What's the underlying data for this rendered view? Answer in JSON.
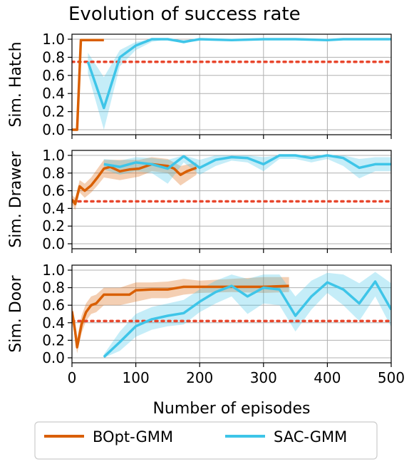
{
  "chart_data": {
    "type": "line",
    "title": "Evolution of success rate",
    "xlabel": "Number of episodes",
    "xlim": [
      0,
      500
    ],
    "x_ticks": [
      0,
      100,
      200,
      300,
      400,
      500
    ],
    "y_ticks": [
      "0.0",
      "0.2",
      "0.4",
      "0.6",
      "0.8",
      "1.0"
    ],
    "grid": true,
    "legend": {
      "placement": "bottom",
      "entries": [
        {
          "name": "BOpt-GMM",
          "color": "#d95f02"
        },
        {
          "name": "SAC-GMM",
          "color": "#3ec5e8"
        }
      ]
    },
    "subplots": [
      {
        "ylabel": "Sim. Hatch",
        "ylim": [
          0,
          1.05
        ],
        "threshold": 0.75,
        "threshold_color": "#e8462c",
        "series": [
          {
            "name": "BOpt-GMM",
            "color": "#d95f02",
            "points": [
              [
                0,
                0.0
              ],
              [
                8,
                0.0
              ],
              [
                14,
                0.99
              ],
              [
                30,
                0.99
              ],
              [
                50,
                0.99
              ]
            ],
            "band": []
          },
          {
            "name": "SAC-GMM",
            "color": "#3ec5e8",
            "points": [
              [
                25,
                0.75
              ],
              [
                50,
                0.24
              ],
              [
                75,
                0.8
              ],
              [
                100,
                0.93
              ],
              [
                125,
                1.0
              ],
              [
                150,
                1.0
              ],
              [
                175,
                0.97
              ],
              [
                200,
                1.0
              ],
              [
                250,
                0.99
              ],
              [
                300,
                1.0
              ],
              [
                350,
                1.0
              ],
              [
                400,
                0.99
              ],
              [
                425,
                1.0
              ],
              [
                500,
                1.0
              ]
            ],
            "band": [
              [
                25,
                0.62,
                0.85
              ],
              [
                50,
                0.0,
                0.58
              ],
              [
                75,
                0.7,
                0.88
              ],
              [
                100,
                0.88,
                0.97
              ],
              [
                125,
                0.97,
                1.0
              ],
              [
                150,
                1.0,
                1.0
              ],
              [
                175,
                0.95,
                0.99
              ],
              [
                200,
                1.0,
                1.0
              ],
              [
                500,
                1.0,
                1.0
              ]
            ]
          }
        ]
      },
      {
        "ylabel": "Sim. Drawer",
        "ylim": [
          0,
          1.05
        ],
        "threshold": 0.48,
        "threshold_color": "#e8462c",
        "series": [
          {
            "name": "BOpt-GMM",
            "color": "#d95f02",
            "points": [
              [
                0,
                0.5
              ],
              [
                5,
                0.45
              ],
              [
                12,
                0.65
              ],
              [
                20,
                0.6
              ],
              [
                30,
                0.66
              ],
              [
                40,
                0.75
              ],
              [
                50,
                0.85
              ],
              [
                60,
                0.87
              ],
              [
                75,
                0.82
              ],
              [
                90,
                0.84
              ],
              [
                105,
                0.85
              ],
              [
                125,
                0.9
              ],
              [
                150,
                0.88
              ],
              [
                160,
                0.85
              ],
              [
                170,
                0.78
              ],
              [
                180,
                0.82
              ],
              [
                195,
                0.86
              ]
            ],
            "band": [
              [
                0,
                0.55,
                0.45
              ],
              [
                5,
                0.52,
                0.38
              ],
              [
                12,
                0.72,
                0.58
              ],
              [
                20,
                0.68,
                0.52
              ],
              [
                30,
                0.75,
                0.58
              ],
              [
                40,
                0.85,
                0.66
              ],
              [
                50,
                0.95,
                0.75
              ],
              [
                75,
                0.95,
                0.72
              ],
              [
                105,
                0.95,
                0.76
              ],
              [
                125,
                0.98,
                0.82
              ],
              [
                150,
                0.96,
                0.8
              ],
              [
                170,
                0.88,
                0.66
              ],
              [
                195,
                0.92,
                0.78
              ]
            ]
          },
          {
            "name": "SAC-GMM",
            "color": "#3ec5e8",
            "points": [
              [
                50,
                0.9
              ],
              [
                75,
                0.87
              ],
              [
                100,
                0.92
              ],
              [
                125,
                0.9
              ],
              [
                150,
                0.85
              ],
              [
                175,
                0.99
              ],
              [
                200,
                0.86
              ],
              [
                225,
                0.95
              ],
              [
                250,
                0.98
              ],
              [
                275,
                0.97
              ],
              [
                300,
                0.9
              ],
              [
                325,
                1.0
              ],
              [
                350,
                1.0
              ],
              [
                375,
                0.97
              ],
              [
                400,
                1.0
              ],
              [
                425,
                0.97
              ],
              [
                450,
                0.86
              ],
              [
                475,
                0.9
              ],
              [
                500,
                0.9
              ]
            ],
            "band": [
              [
                50,
                0.96,
                0.84
              ],
              [
                75,
                0.94,
                0.78
              ],
              [
                100,
                0.98,
                0.82
              ],
              [
                125,
                0.97,
                0.8
              ],
              [
                150,
                0.95,
                0.68
              ],
              [
                175,
                1.0,
                0.92
              ],
              [
                200,
                0.95,
                0.78
              ],
              [
                225,
                1.0,
                0.88
              ],
              [
                250,
                1.0,
                0.94
              ],
              [
                275,
                1.0,
                0.92
              ],
              [
                300,
                0.98,
                0.82
              ],
              [
                325,
                1.0,
                0.96
              ],
              [
                350,
                1.0,
                0.96
              ],
              [
                375,
                1.0,
                0.92
              ],
              [
                400,
                1.0,
                0.96
              ],
              [
                425,
                1.0,
                0.88
              ],
              [
                450,
                0.96,
                0.74
              ],
              [
                475,
                0.98,
                0.82
              ],
              [
                500,
                0.98,
                0.82
              ]
            ]
          }
        ]
      },
      {
        "ylabel": "Sim. Door",
        "ylim": [
          0,
          1.05
        ],
        "threshold": 0.42,
        "threshold_color": "#e8462c",
        "series": [
          {
            "name": "BOpt-GMM",
            "color": "#d95f02",
            "points": [
              [
                0,
                0.53
              ],
              [
                5,
                0.3
              ],
              [
                8,
                0.12
              ],
              [
                15,
                0.38
              ],
              [
                22,
                0.52
              ],
              [
                30,
                0.6
              ],
              [
                38,
                0.62
              ],
              [
                50,
                0.72
              ],
              [
                75,
                0.72
              ],
              [
                90,
                0.72
              ],
              [
                100,
                0.77
              ],
              [
                125,
                0.78
              ],
              [
                150,
                0.78
              ],
              [
                175,
                0.81
              ],
              [
                200,
                0.81
              ],
              [
                250,
                0.81
              ],
              [
                300,
                0.81
              ],
              [
                340,
                0.82
              ]
            ],
            "band": [
              [
                0,
                0.6,
                0.45
              ],
              [
                5,
                0.42,
                0.2
              ],
              [
                8,
                0.22,
                0.05
              ],
              [
                15,
                0.48,
                0.28
              ],
              [
                22,
                0.62,
                0.42
              ],
              [
                30,
                0.7,
                0.5
              ],
              [
                38,
                0.72,
                0.52
              ],
              [
                50,
                0.8,
                0.6
              ],
              [
                75,
                0.8,
                0.6
              ],
              [
                100,
                0.86,
                0.64
              ],
              [
                125,
                0.86,
                0.68
              ],
              [
                150,
                0.87,
                0.68
              ],
              [
                175,
                0.9,
                0.72
              ],
              [
                200,
                0.88,
                0.74
              ],
              [
                250,
                0.9,
                0.75
              ],
              [
                300,
                0.92,
                0.74
              ],
              [
                340,
                0.92,
                0.75
              ]
            ]
          },
          {
            "name": "SAC-GMM",
            "color": "#3ec5e8",
            "points": [
              [
                50,
                0.01
              ],
              [
                75,
                0.18
              ],
              [
                100,
                0.36
              ],
              [
                125,
                0.44
              ],
              [
                150,
                0.48
              ],
              [
                175,
                0.51
              ],
              [
                200,
                0.64
              ],
              [
                225,
                0.75
              ],
              [
                250,
                0.82
              ],
              [
                275,
                0.7
              ],
              [
                300,
                0.8
              ],
              [
                325,
                0.78
              ],
              [
                350,
                0.48
              ],
              [
                375,
                0.7
              ],
              [
                400,
                0.86
              ],
              [
                425,
                0.78
              ],
              [
                450,
                0.62
              ],
              [
                475,
                0.87
              ],
              [
                500,
                0.55
              ]
            ],
            "band": [
              [
                50,
                0.04,
                0.0
              ],
              [
                75,
                0.3,
                0.08
              ],
              [
                100,
                0.5,
                0.24
              ],
              [
                125,
                0.58,
                0.32
              ],
              [
                150,
                0.62,
                0.36
              ],
              [
                175,
                0.66,
                0.38
              ],
              [
                200,
                0.78,
                0.52
              ],
              [
                225,
                0.88,
                0.62
              ],
              [
                250,
                0.95,
                0.7
              ],
              [
                275,
                0.9,
                0.5
              ],
              [
                300,
                0.95,
                0.62
              ],
              [
                325,
                0.95,
                0.6
              ],
              [
                350,
                0.7,
                0.3
              ],
              [
                375,
                0.88,
                0.55
              ],
              [
                400,
                0.97,
                0.74
              ],
              [
                425,
                0.95,
                0.6
              ],
              [
                450,
                0.85,
                0.42
              ],
              [
                475,
                0.98,
                0.7
              ],
              [
                500,
                0.85,
                0.35
              ]
            ]
          }
        ]
      }
    ]
  }
}
